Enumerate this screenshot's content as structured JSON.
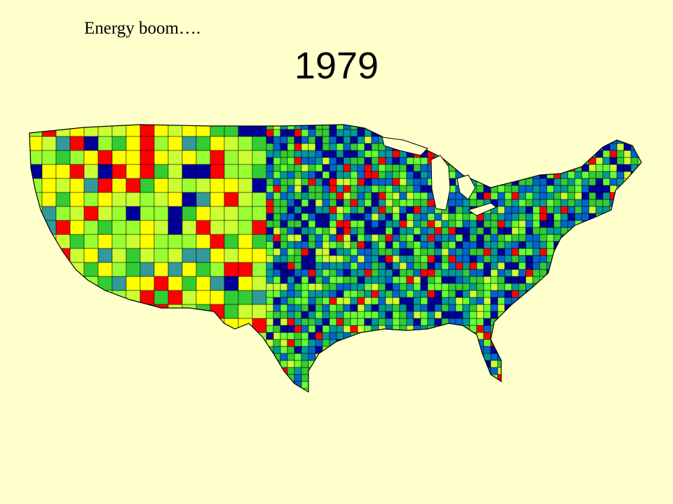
{
  "header": {
    "caption": "Energy boom….",
    "year": "1979"
  }
}
